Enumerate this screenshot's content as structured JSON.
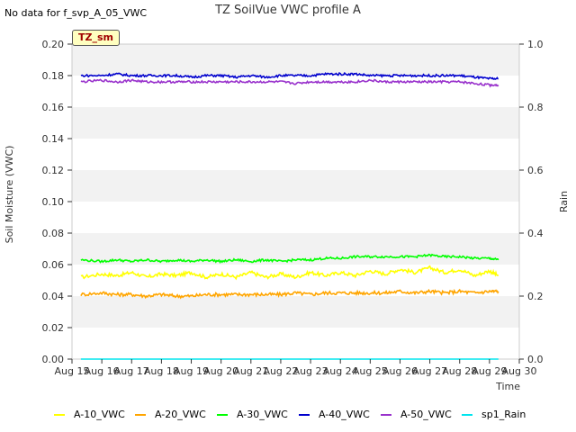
{
  "header": {
    "no_data_text": "No data for f_svp_A_05_VWC",
    "title": "TZ SoilVue VWC profile A",
    "badge": "TZ_sm"
  },
  "chart_data": {
    "type": "line",
    "title": "TZ SoilVue VWC profile A",
    "xlabel": "Time",
    "ylabel": "Soil Moisture (VWC)",
    "y2label": "Rain",
    "ylim": [
      0,
      0.2
    ],
    "y2lim": [
      0,
      1.0
    ],
    "x_day_range": [
      15,
      30
    ],
    "x_ticks": [
      "Aug 15",
      "Aug 16",
      "Aug 17",
      "Aug 18",
      "Aug 19",
      "Aug 20",
      "Aug 21",
      "Aug 22",
      "Aug 23",
      "Aug 24",
      "Aug 25",
      "Aug 26",
      "Aug 27",
      "Aug 28",
      "Aug 29",
      "Aug 30"
    ],
    "y_ticks": [
      "0.00",
      "0.02",
      "0.04",
      "0.06",
      "0.08",
      "0.10",
      "0.12",
      "0.14",
      "0.16",
      "0.18",
      "0.20"
    ],
    "y2_ticks": [
      "0.0",
      "0.2",
      "0.4",
      "0.6",
      "0.8",
      "1.0"
    ],
    "grid": "horizontal bands",
    "legend_position": "bottom",
    "series": [
      {
        "name": "A-10_VWC",
        "color": "#ffff00",
        "x": [
          15.3,
          16.0,
          16.5,
          17.0,
          17.5,
          18.0,
          18.5,
          19.0,
          19.5,
          20.0,
          20.5,
          21.0,
          21.5,
          22.0,
          22.5,
          23.0,
          23.5,
          24.0,
          24.5,
          25.0,
          25.5,
          26.0,
          26.5,
          27.0,
          27.5,
          28.0,
          28.5,
          29.0,
          29.3
        ],
        "values": [
          0.052,
          0.054,
          0.053,
          0.055,
          0.052,
          0.054,
          0.053,
          0.055,
          0.052,
          0.054,
          0.052,
          0.055,
          0.052,
          0.054,
          0.052,
          0.055,
          0.053,
          0.055,
          0.053,
          0.056,
          0.054,
          0.057,
          0.055,
          0.058,
          0.055,
          0.057,
          0.053,
          0.056,
          0.053
        ],
        "axis": "left"
      },
      {
        "name": "A-20_VWC",
        "color": "#ffa500",
        "x": [
          15.3,
          16.0,
          16.5,
          17.0,
          17.5,
          18.0,
          18.5,
          19.0,
          19.5,
          20.0,
          20.5,
          21.0,
          21.5,
          22.0,
          22.5,
          23.0,
          23.5,
          24.0,
          24.5,
          25.0,
          25.5,
          26.0,
          26.5,
          27.0,
          27.5,
          28.0,
          28.5,
          29.0,
          29.3
        ],
        "values": [
          0.041,
          0.042,
          0.041,
          0.041,
          0.04,
          0.041,
          0.04,
          0.04,
          0.041,
          0.041,
          0.041,
          0.041,
          0.041,
          0.041,
          0.042,
          0.041,
          0.042,
          0.042,
          0.042,
          0.042,
          0.042,
          0.043,
          0.042,
          0.043,
          0.042,
          0.043,
          0.042,
          0.043,
          0.043
        ],
        "axis": "left"
      },
      {
        "name": "A-30_VWC",
        "color": "#00ff00",
        "x": [
          15.3,
          16.0,
          16.5,
          17.0,
          17.5,
          18.0,
          18.5,
          19.0,
          19.5,
          20.0,
          20.5,
          21.0,
          21.5,
          22.0,
          22.5,
          23.0,
          23.5,
          24.0,
          24.5,
          25.0,
          25.5,
          26.0,
          26.5,
          27.0,
          27.5,
          28.0,
          28.5,
          29.0,
          29.3
        ],
        "values": [
          0.063,
          0.062,
          0.063,
          0.062,
          0.063,
          0.062,
          0.063,
          0.062,
          0.063,
          0.062,
          0.063,
          0.062,
          0.063,
          0.062,
          0.063,
          0.063,
          0.064,
          0.064,
          0.065,
          0.065,
          0.065,
          0.065,
          0.065,
          0.066,
          0.065,
          0.065,
          0.064,
          0.064,
          0.063
        ],
        "axis": "left"
      },
      {
        "name": "A-40_VWC",
        "color": "#0000cd",
        "x": [
          15.3,
          16.0,
          16.5,
          17.0,
          17.5,
          18.0,
          18.5,
          19.0,
          19.5,
          20.0,
          20.5,
          21.0,
          21.5,
          22.0,
          22.5,
          23.0,
          23.5,
          24.0,
          24.5,
          25.0,
          25.5,
          26.0,
          26.5,
          27.0,
          27.5,
          28.0,
          28.5,
          29.0,
          29.3
        ],
        "values": [
          0.18,
          0.18,
          0.181,
          0.18,
          0.18,
          0.18,
          0.18,
          0.179,
          0.18,
          0.18,
          0.179,
          0.18,
          0.179,
          0.18,
          0.18,
          0.18,
          0.181,
          0.181,
          0.181,
          0.18,
          0.18,
          0.18,
          0.18,
          0.18,
          0.18,
          0.18,
          0.179,
          0.178,
          0.178
        ],
        "axis": "left"
      },
      {
        "name": "A-50_VWC",
        "color": "#9932cc",
        "x": [
          15.3,
          16.0,
          16.5,
          17.0,
          17.5,
          18.0,
          18.5,
          19.0,
          19.5,
          20.0,
          20.5,
          21.0,
          21.5,
          22.0,
          22.5,
          23.0,
          23.5,
          24.0,
          24.5,
          25.0,
          25.5,
          26.0,
          26.5,
          27.0,
          27.5,
          28.0,
          28.5,
          29.0,
          29.3
        ],
        "values": [
          0.176,
          0.177,
          0.176,
          0.177,
          0.176,
          0.176,
          0.176,
          0.176,
          0.176,
          0.176,
          0.176,
          0.176,
          0.176,
          0.176,
          0.175,
          0.176,
          0.176,
          0.176,
          0.176,
          0.177,
          0.176,
          0.176,
          0.176,
          0.176,
          0.176,
          0.176,
          0.175,
          0.174,
          0.174
        ],
        "axis": "left"
      },
      {
        "name": "sp1_Rain",
        "color": "#00e5ee",
        "x": [
          15.3,
          29.3
        ],
        "values": [
          0.0,
          0.0
        ],
        "axis": "right"
      }
    ]
  }
}
